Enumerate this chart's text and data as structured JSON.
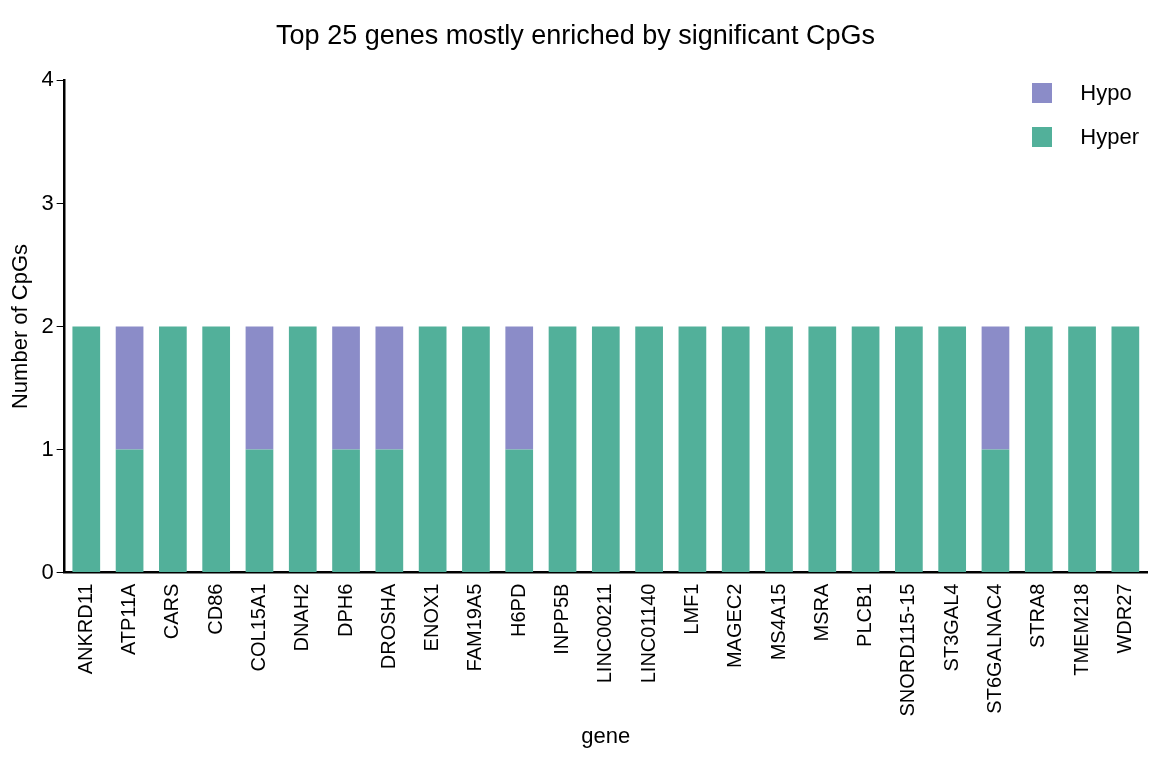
{
  "chart_data": {
    "type": "bar",
    "title": "Top 25 genes mostly enriched by significant CpGs",
    "xlabel": "gene",
    "ylabel": "Number of CpGs",
    "categories": [
      "ANKRD11",
      "ATP11A",
      "CARS",
      "CD86",
      "COL15A1",
      "DNAH2",
      "DPH6",
      "DROSHA",
      "ENOX1",
      "FAM19A5",
      "H6PD",
      "INPP5B",
      "LINC00211",
      "LINC01140",
      "LMF1",
      "MAGEC2",
      "MS4A15",
      "MSRA",
      "PLCB1",
      "SNORD115-15",
      "ST3GAL4",
      "ST6GALNAC4",
      "STRA8",
      "TMEM218",
      "WDR27"
    ],
    "series": [
      {
        "name": "Hyper",
        "color": "#52b09a",
        "values": [
          2,
          1,
          2,
          2,
          1,
          2,
          1,
          1,
          2,
          2,
          1,
          2,
          2,
          2,
          2,
          2,
          2,
          2,
          2,
          2,
          2,
          1,
          2,
          2,
          2
        ]
      },
      {
        "name": "Hypo",
        "color": "#8b8cc8",
        "values": [
          0,
          1,
          0,
          0,
          1,
          0,
          1,
          1,
          0,
          0,
          1,
          0,
          0,
          0,
          0,
          0,
          0,
          0,
          0,
          0,
          0,
          1,
          0,
          0,
          0
        ]
      }
    ],
    "stacked": true,
    "ylim": [
      0,
      4
    ],
    "yticks": [
      0,
      1,
      2,
      3,
      4
    ],
    "grid": false,
    "legend": "top right"
  }
}
